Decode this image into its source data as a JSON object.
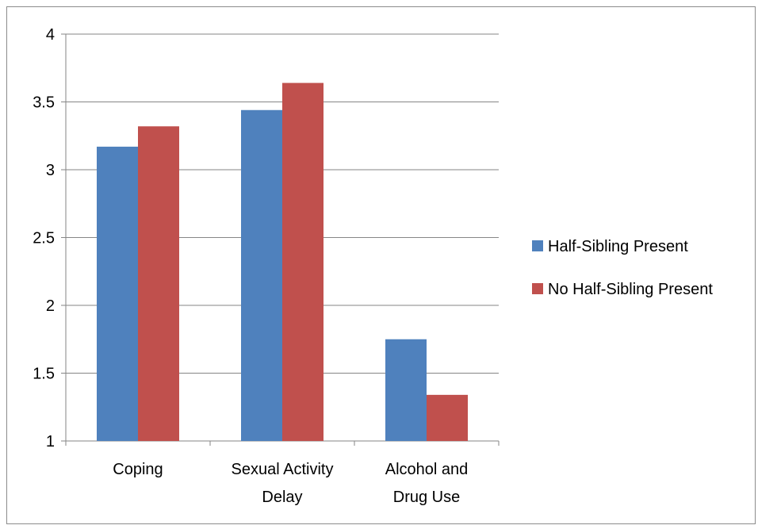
{
  "chart_data": {
    "type": "bar",
    "title": "",
    "xlabel": "",
    "ylabel": "",
    "ylim": [
      1,
      4
    ],
    "yticks": [
      "1",
      "1.5",
      "2",
      "2.5",
      "3",
      "3.5",
      "4"
    ],
    "categories": [
      [
        "Coping"
      ],
      [
        "Sexual Activity",
        "Delay"
      ],
      [
        "Alcohol and",
        "Drug Use"
      ]
    ],
    "series": [
      {
        "name": "Half-Sibling Present",
        "color": "#4f81bd",
        "values": [
          3.17,
          3.44,
          1.75
        ]
      },
      {
        "name": "No Half-Sibling Present",
        "color": "#c0504d",
        "values": [
          3.32,
          3.64,
          1.34
        ]
      }
    ],
    "grid": true,
    "legend_position": "right"
  }
}
